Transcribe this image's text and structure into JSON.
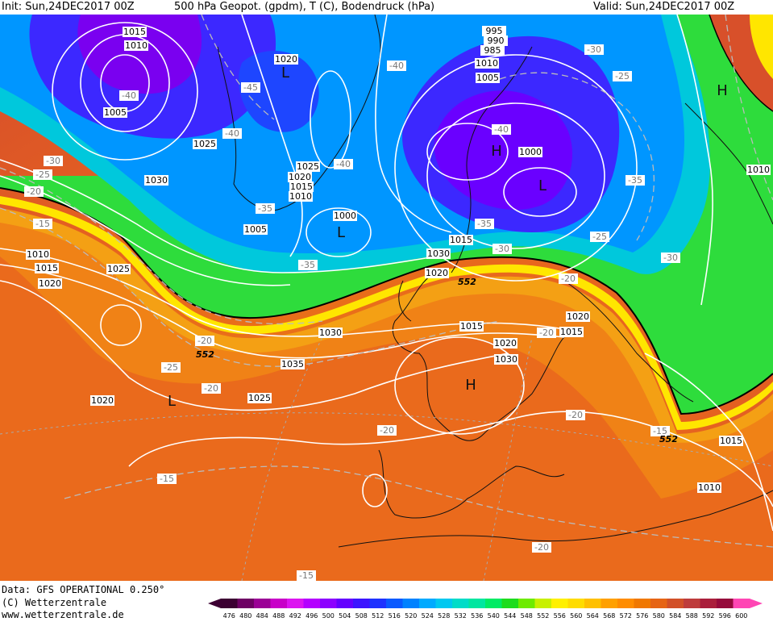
{
  "header": {
    "left": "Init: Sun,24DEC2017 00Z",
    "center": "500 hPa Geopot. (gpdm), T (C), Bodendruck (hPa)",
    "right": "Valid: Sun,24DEC2017 00Z"
  },
  "footer": {
    "line1": "Data: GFS OPERATIONAL 0.250°",
    "line2": "(C) Wetterzentrale",
    "line3": "www.wetterzentrale.de"
  },
  "legend": {
    "ticks": [
      "476",
      "480",
      "484",
      "488",
      "492",
      "496",
      "500",
      "504",
      "508",
      "512",
      "516",
      "520",
      "524",
      "528",
      "532",
      "536",
      "540",
      "544",
      "548",
      "552",
      "556",
      "560",
      "564",
      "568",
      "572",
      "576",
      "580",
      "584",
      "588",
      "592",
      "596",
      "600"
    ],
    "colors": [
      "#3c0032",
      "#6e0064",
      "#9b0096",
      "#c800c8",
      "#dc14f0",
      "#b400ff",
      "#8c00ff",
      "#6400ff",
      "#3c14ff",
      "#1e32ff",
      "#0a5aff",
      "#0082ff",
      "#00aaff",
      "#00c8f0",
      "#00dcc8",
      "#00e6a0",
      "#00eb64",
      "#1edc1e",
      "#6eeb00",
      "#c8f000",
      "#fff000",
      "#ffdc00",
      "#ffc000",
      "#ffa000",
      "#ff8c00",
      "#f07800",
      "#e66414",
      "#d25028",
      "#be3c3c",
      "#aa1e3c",
      "#960a3c",
      "#ff46b4"
    ]
  },
  "map": {
    "geopot_contour_label": "552",
    "pressure_labels": [
      "1015",
      "1010",
      "1005",
      "1020",
      "1025",
      "1030",
      "1025",
      "1020",
      "1015",
      "1010",
      "1005",
      "1000",
      "995",
      "990",
      "985",
      "1010",
      "1005",
      "1000",
      "1010",
      "1010",
      "1015",
      "1020",
      "1030",
      "1015",
      "1020",
      "1025",
      "1030",
      "1035",
      "1025",
      "1015",
      "1020",
      "1030",
      "1020",
      "1015",
      "1020",
      "1010",
      "1015",
      "1005",
      "1010"
    ],
    "temp_labels": [
      "-40",
      "-45",
      "-40",
      "-40",
      "-30",
      "-25",
      "-20",
      "-15",
      "-35",
      "-35",
      "-40",
      "-35",
      "-30",
      "-25",
      "-20",
      "-30",
      "-35",
      "-40",
      "-30",
      "-20",
      "-25",
      "-20",
      "-20",
      "-20",
      "-15",
      "-20",
      "-20",
      "-15",
      "-15",
      "-25",
      "-20",
      "-20"
    ],
    "pressure_systems": [
      {
        "type": "H"
      },
      {
        "type": "H"
      },
      {
        "type": "H"
      },
      {
        "type": "L"
      },
      {
        "type": "L"
      },
      {
        "type": "L"
      },
      {
        "type": "L"
      }
    ]
  }
}
